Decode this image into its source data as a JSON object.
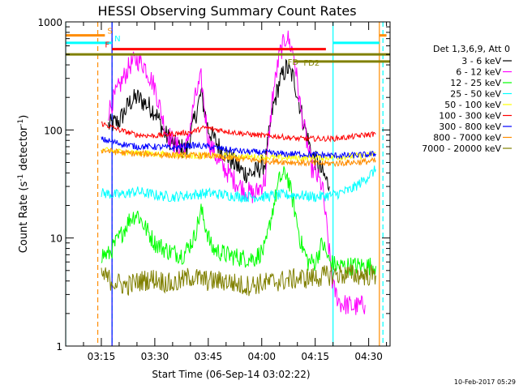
{
  "chart_data": {
    "type": "line",
    "title": "HESSI Observing Summary Count Rates",
    "xlabel": "Start Time (06-Sep-14 03:02:22)",
    "ylabel_main": "Count Rate (s",
    "ylabel_sup": "-1",
    "ylabel_mid": " detector",
    "ylabel_end": ")",
    "timestamp": "10-Feb-2017 05:29",
    "xlim": [
      "03:05",
      "04:36"
    ],
    "ylim": [
      1,
      1000
    ],
    "yscale": "log",
    "x_ticks": [
      "03:15",
      "03:30",
      "03:45",
      "04:00",
      "04:15",
      "04:30"
    ],
    "y_ticks": [
      {
        "label": "1",
        "value": 1
      },
      {
        "label": "10",
        "value": 10
      },
      {
        "label": "100",
        "value": 100
      },
      {
        "label": "1000",
        "value": 1000
      }
    ],
    "legend_header": "Det 1,3,6,9, Att 0",
    "legend_position": "right",
    "series": [
      {
        "name": "3 - 6 keV",
        "color": "#000000",
        "points": [
          [
            "03:17",
            110
          ],
          [
            "03:20",
            120
          ],
          [
            "03:23",
            180
          ],
          [
            "03:25",
            200
          ],
          [
            "03:27",
            180
          ],
          [
            "03:30",
            150
          ],
          [
            "03:33",
            90
          ],
          [
            "03:36",
            70
          ],
          [
            "03:39",
            65
          ],
          [
            "03:41",
            120
          ],
          [
            "03:43",
            220
          ],
          [
            "03:45",
            100
          ],
          [
            "03:48",
            70
          ],
          [
            "03:52",
            50
          ],
          [
            "03:55",
            40
          ],
          [
            "03:58",
            40
          ],
          [
            "04:01",
            50
          ],
          [
            "04:03",
            150
          ],
          [
            "04:05",
            280
          ],
          [
            "04:07",
            380
          ],
          [
            "04:09",
            300
          ],
          [
            "04:11",
            150
          ],
          [
            "04:14",
            60
          ],
          [
            "04:17",
            40
          ],
          [
            "04:19",
            30
          ]
        ]
      },
      {
        "name": "6 - 12 keV",
        "color": "#ff00ff",
        "points": [
          [
            "03:17",
            150
          ],
          [
            "03:20",
            250
          ],
          [
            "03:23",
            400
          ],
          [
            "03:25",
            450
          ],
          [
            "03:27",
            400
          ],
          [
            "03:30",
            250
          ],
          [
            "03:33",
            100
          ],
          [
            "03:36",
            70
          ],
          [
            "03:39",
            70
          ],
          [
            "03:41",
            180
          ],
          [
            "03:43",
            300
          ],
          [
            "03:45",
            80
          ],
          [
            "03:48",
            50
          ],
          [
            "03:52",
            35
          ],
          [
            "03:55",
            28
          ],
          [
            "03:58",
            25
          ],
          [
            "04:01",
            35
          ],
          [
            "04:03",
            200
          ],
          [
            "04:05",
            500
          ],
          [
            "04:07",
            750
          ],
          [
            "04:09",
            500
          ],
          [
            "04:11",
            150
          ],
          [
            "04:14",
            45
          ],
          [
            "04:17",
            30
          ],
          [
            "04:20",
            3.5
          ],
          [
            "04:22",
            2.5
          ],
          [
            "04:26",
            2.3
          ],
          [
            "04:29",
            2.4
          ]
        ]
      },
      {
        "name": "12 - 25 keV",
        "color": "#00ff00",
        "points": [
          [
            "03:15",
            7
          ],
          [
            "03:17",
            7
          ],
          [
            "03:20",
            10
          ],
          [
            "03:23",
            15
          ],
          [
            "03:25",
            17
          ],
          [
            "03:27",
            13
          ],
          [
            "03:30",
            9
          ],
          [
            "03:34",
            7.5
          ],
          [
            "03:38",
            7
          ],
          [
            "03:41",
            10
          ],
          [
            "03:43",
            18
          ],
          [
            "03:46",
            8
          ],
          [
            "03:50",
            7
          ],
          [
            "03:55",
            6.5
          ],
          [
            "03:58",
            6.5
          ],
          [
            "04:01",
            8
          ],
          [
            "04:03",
            18
          ],
          [
            "04:05",
            35
          ],
          [
            "04:07",
            40
          ],
          [
            "04:09",
            20
          ],
          [
            "04:11",
            9
          ],
          [
            "04:13",
            6
          ],
          [
            "04:15",
            6
          ],
          [
            "04:17",
            9
          ],
          [
            "04:19",
            6
          ],
          [
            "04:21",
            5.5
          ],
          [
            "04:25",
            5.5
          ],
          [
            "04:32",
            5.5
          ]
        ]
      },
      {
        "name": "25 - 50 keV",
        "color": "#00ffff",
        "points": [
          [
            "03:15",
            26
          ],
          [
            "03:20",
            25
          ],
          [
            "03:25",
            27
          ],
          [
            "03:30",
            25
          ],
          [
            "03:35",
            24
          ],
          [
            "03:40",
            25
          ],
          [
            "03:45",
            26
          ],
          [
            "03:50",
            25
          ],
          [
            "03:55",
            24
          ],
          [
            "04:00",
            24
          ],
          [
            "04:05",
            25
          ],
          [
            "04:10",
            25
          ],
          [
            "04:15",
            24
          ],
          [
            "04:20",
            25
          ],
          [
            "04:25",
            28
          ],
          [
            "04:28",
            33
          ],
          [
            "04:31",
            40
          ],
          [
            "04:32",
            43
          ]
        ]
      },
      {
        "name": "50 - 100 keV",
        "color": "#ffff00",
        "points": [
          [
            "03:15",
            65
          ],
          [
            "03:20",
            63
          ],
          [
            "03:30",
            60
          ],
          [
            "03:40",
            58
          ],
          [
            "03:50",
            57
          ],
          [
            "04:00",
            56
          ],
          [
            "04:10",
            55
          ],
          [
            "04:20",
            56
          ],
          [
            "04:30",
            58
          ],
          [
            "04:32",
            62
          ]
        ]
      },
      {
        "name": "100 - 300 keV",
        "color": "#ff0000",
        "points": [
          [
            "03:15",
            115
          ],
          [
            "03:20",
            100
          ],
          [
            "03:25",
            90
          ],
          [
            "03:30",
            88
          ],
          [
            "03:35",
            92
          ],
          [
            "03:40",
            95
          ],
          [
            "03:44",
            105
          ],
          [
            "03:48",
            100
          ],
          [
            "03:52",
            95
          ],
          [
            "03:58",
            90
          ],
          [
            "04:02",
            88
          ],
          [
            "04:06",
            86
          ],
          [
            "04:10",
            83
          ],
          [
            "04:15",
            83
          ],
          [
            "04:20",
            83
          ],
          [
            "04:25",
            86
          ],
          [
            "04:29",
            90
          ],
          [
            "04:32",
            92
          ]
        ]
      },
      {
        "name": "300 - 800 keV",
        "color": "#0000ff",
        "points": [
          [
            "03:15",
            82
          ],
          [
            "03:20",
            75
          ],
          [
            "03:25",
            70
          ],
          [
            "03:30",
            70
          ],
          [
            "03:35",
            68
          ],
          [
            "03:40",
            72
          ],
          [
            "03:45",
            70
          ],
          [
            "03:50",
            66
          ],
          [
            "03:55",
            63
          ],
          [
            "04:00",
            62
          ],
          [
            "04:05",
            60
          ],
          [
            "04:10",
            60
          ],
          [
            "04:15",
            59
          ],
          [
            "04:20",
            58
          ],
          [
            "04:25",
            58
          ],
          [
            "04:30",
            59
          ],
          [
            "04:32",
            60
          ]
        ]
      },
      {
        "name": "800 - 7000 keV",
        "color": "#ff8c00",
        "points": [
          [
            "03:15",
            65
          ],
          [
            "03:20",
            62
          ],
          [
            "03:25",
            60
          ],
          [
            "03:30",
            60
          ],
          [
            "03:35",
            58
          ],
          [
            "03:40",
            58
          ],
          [
            "03:45",
            58
          ],
          [
            "03:50",
            55
          ],
          [
            "03:55",
            54
          ],
          [
            "04:00",
            52
          ],
          [
            "04:05",
            51
          ],
          [
            "04:10",
            50
          ],
          [
            "04:15",
            49
          ],
          [
            "04:20",
            49
          ],
          [
            "04:25",
            50
          ],
          [
            "04:30",
            51
          ],
          [
            "04:32",
            52
          ]
        ]
      },
      {
        "name": "7000 - 20000 keV",
        "color": "#808000",
        "points": [
          [
            "03:15",
            4.6
          ],
          [
            "03:18",
            4.0
          ],
          [
            "03:22",
            3.6
          ],
          [
            "03:26",
            4.0
          ],
          [
            "03:30",
            4.2
          ],
          [
            "03:35",
            3.7
          ],
          [
            "03:40",
            4.4
          ],
          [
            "03:45",
            4.0
          ],
          [
            "03:50",
            4.0
          ],
          [
            "03:55",
            3.6
          ],
          [
            "04:00",
            3.8
          ],
          [
            "04:05",
            4.0
          ],
          [
            "04:10",
            4.2
          ],
          [
            "04:15",
            4.3
          ],
          [
            "04:20",
            4.6
          ],
          [
            "04:25",
            4.6
          ],
          [
            "04:30",
            4.5
          ],
          [
            "04:32",
            4.5
          ]
        ]
      }
    ],
    "flags": [
      {
        "label": "S",
        "color": "#ff8c00",
        "x_start": "03:05",
        "x_end": "03:16",
        "value": 750
      },
      {
        "label": "N",
        "color": "#00ffff",
        "x_start": "03:05",
        "x_end": "03:18",
        "value": 640
      },
      {
        "label": "F",
        "color": "#ff0000",
        "x_start": "03:18",
        "x_end": "04:18",
        "value": 560
      },
      {
        "label": "FD2",
        "color": "#808000",
        "x_start": "03:05",
        "x_end": "04:36",
        "value": 500
      },
      {
        "label": "FD",
        "color": "#808000",
        "x_start": "04:09",
        "x_end": "04:36",
        "value": 430
      },
      {
        "label": "",
        "color": "#00ffff",
        "x_start": "04:20",
        "x_end": "04:33",
        "value": 640
      },
      {
        "label": "",
        "color": "#ff8c00",
        "x_start": "04:33",
        "x_end": "04:35",
        "value": 750
      }
    ],
    "vertical_lines": [
      {
        "color": "#00ffff",
        "style": "solid",
        "x": "03:05"
      },
      {
        "color": "#ff8c00",
        "style": "dashed",
        "x": "03:14"
      },
      {
        "color": "#00ffff",
        "style": "dashed",
        "x": "03:18"
      },
      {
        "color": "#0000ff",
        "style": "solid",
        "x": "03:18"
      },
      {
        "color": "#00ffff",
        "style": "solid",
        "x": "04:20"
      },
      {
        "color": "#ff8c00",
        "style": "solid",
        "x": "04:33"
      },
      {
        "color": "#00ffff",
        "style": "dashed",
        "x": "04:34"
      }
    ]
  }
}
